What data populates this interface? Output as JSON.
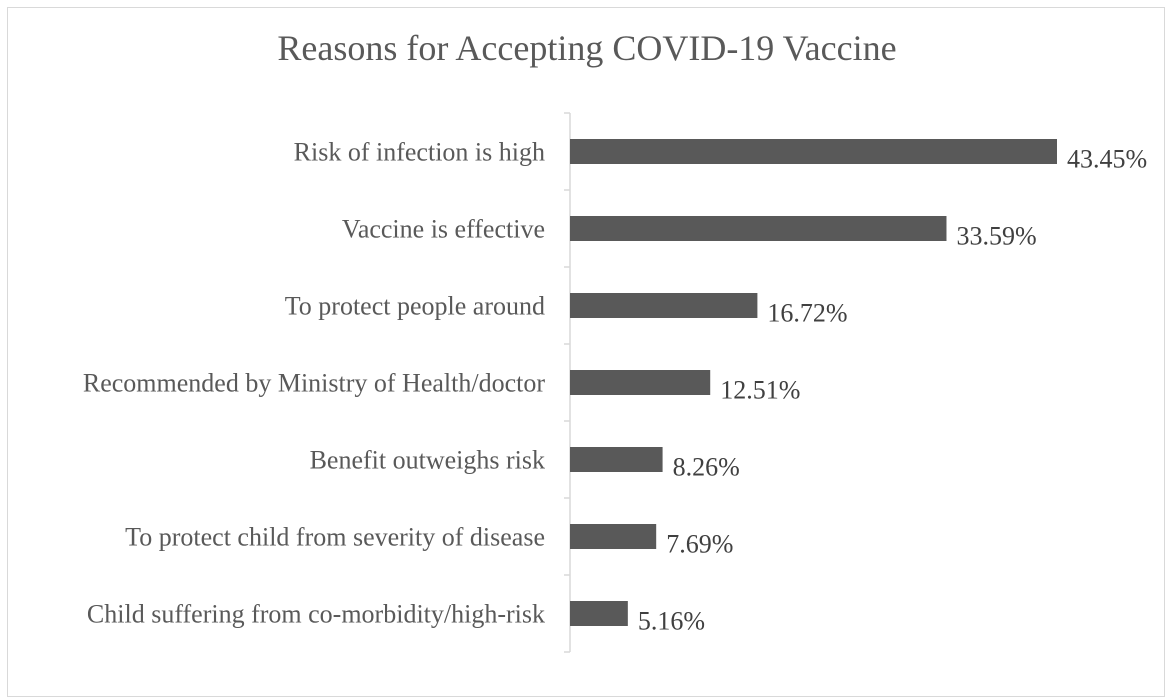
{
  "chart_data": {
    "type": "bar",
    "orientation": "horizontal",
    "title": "Reasons for Accepting COVID-19 Vaccine",
    "xlabel": "",
    "ylabel": "",
    "categories": [
      "Risk of infection is high",
      "Vaccine is effective",
      "To protect people around",
      "Recommended by Ministry of Health/doctor",
      "Benefit outweighs risk",
      "To protect child from severity of disease",
      "Child suffering from co-morbidity/high-risk"
    ],
    "values": [
      43.45,
      33.59,
      16.72,
      12.51,
      8.26,
      7.69,
      5.16
    ],
    "data_labels": [
      "43.45%",
      "33.59%",
      "16.72%",
      "12.51%",
      "8.26%",
      "7.69%",
      "5.16%"
    ],
    "xlim": [
      0,
      50
    ],
    "grid": false,
    "legend": "none",
    "bar_color": "#595959",
    "axis_color": "#d9d9d9"
  }
}
